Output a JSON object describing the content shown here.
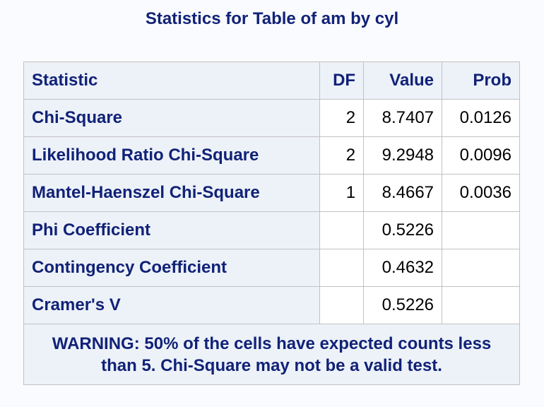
{
  "title": "Statistics for Table of am by cyl",
  "table": {
    "headers": {
      "statistic": "Statistic",
      "df": "DF",
      "value": "Value",
      "prob": "Prob"
    },
    "rows": [
      {
        "statistic": "Chi-Square",
        "df": "2",
        "value": "8.7407",
        "prob": "0.0126"
      },
      {
        "statistic": "Likelihood Ratio Chi-Square",
        "df": "2",
        "value": "9.2948",
        "prob": "0.0096"
      },
      {
        "statistic": "Mantel-Haenszel Chi-Square",
        "df": "1",
        "value": "8.4667",
        "prob": "0.0036"
      },
      {
        "statistic": "Phi Coefficient",
        "df": "",
        "value": "0.5226",
        "prob": ""
      },
      {
        "statistic": "Contingency Coefficient",
        "df": "",
        "value": "0.4632",
        "prob": ""
      },
      {
        "statistic": "Cramer's V",
        "df": "",
        "value": "0.5226",
        "prob": ""
      }
    ],
    "footnote": "WARNING: 50% of the cells have expected counts less than 5. Chi-Square may not be a valid test."
  },
  "colors": {
    "header_text": "#112277",
    "header_background": "#edf2f9",
    "cell_background": "#ffffff",
    "border": "#c1c1c1"
  }
}
